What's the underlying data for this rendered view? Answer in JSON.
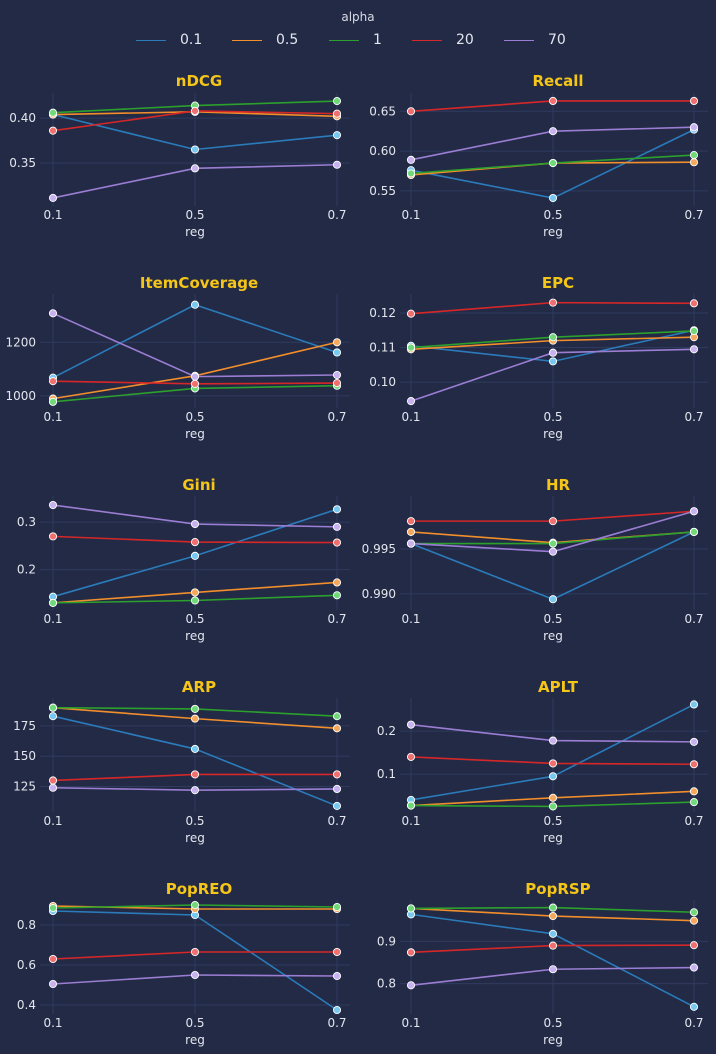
{
  "legend": {
    "title": "alpha",
    "items": [
      {
        "label": "0.1",
        "color": "#2b7bba"
      },
      {
        "label": "0.5",
        "color": "#f28e2b"
      },
      {
        "label": "1",
        "color": "#2ca02c"
      },
      {
        "label": "20",
        "color": "#d62728"
      },
      {
        "label": "70",
        "color": "#9b7ed3"
      }
    ]
  },
  "chart_data": [
    {
      "type": "line",
      "title": "nDCG",
      "xlabel": "reg",
      "categories": [
        "0.1",
        "0.5",
        "0.7"
      ],
      "ylim": [
        0.302,
        0.428
      ],
      "yticks": [
        0.35,
        0.4
      ],
      "yticklabels": [
        "0.35",
        "0.40"
      ],
      "series": [
        {
          "name": "0.1",
          "values": [
            0.404,
            0.365,
            0.381
          ]
        },
        {
          "name": "0.5",
          "values": [
            0.404,
            0.407,
            0.402
          ]
        },
        {
          "name": "1",
          "values": [
            0.406,
            0.414,
            0.419
          ]
        },
        {
          "name": "20",
          "values": [
            0.386,
            0.408,
            0.405
          ]
        },
        {
          "name": "70",
          "values": [
            0.311,
            0.344,
            0.348
          ]
        }
      ]
    },
    {
      "type": "line",
      "title": "Recall",
      "xlabel": "reg",
      "categories": [
        "0.1",
        "0.5",
        "0.7"
      ],
      "ylim": [
        0.531,
        0.673
      ],
      "yticks": [
        0.55,
        0.6,
        0.65
      ],
      "yticklabels": [
        "0.55",
        "0.60",
        "0.65"
      ],
      "series": [
        {
          "name": "0.1",
          "values": [
            0.576,
            0.541,
            0.627
          ]
        },
        {
          "name": "0.5",
          "values": [
            0.57,
            0.585,
            0.586
          ]
        },
        {
          "name": "1",
          "values": [
            0.572,
            0.585,
            0.595
          ]
        },
        {
          "name": "20",
          "values": [
            0.65,
            0.663,
            0.663
          ]
        },
        {
          "name": "70",
          "values": [
            0.589,
            0.625,
            0.63
          ]
        }
      ]
    },
    {
      "type": "line",
      "title": "ItemCoverage",
      "xlabel": "reg",
      "categories": [
        "0.1",
        "0.5",
        "0.7"
      ],
      "ylim": [
        955,
        1380
      ],
      "yticks": [
        1000,
        1200
      ],
      "yticklabels": [
        "1000",
        "1200"
      ],
      "series": [
        {
          "name": "0.1",
          "values": [
            1068,
            1340,
            1162
          ]
        },
        {
          "name": "0.5",
          "values": [
            990,
            1075,
            1200
          ]
        },
        {
          "name": "1",
          "values": [
            978,
            1028,
            1038
          ]
        },
        {
          "name": "20",
          "values": [
            1055,
            1045,
            1048
          ]
        },
        {
          "name": "70",
          "values": [
            1308,
            1072,
            1078
          ]
        }
      ]
    },
    {
      "type": "line",
      "title": "EPC",
      "xlabel": "reg",
      "categories": [
        "0.1",
        "0.5",
        "0.7"
      ],
      "ylim": [
        0.0925,
        0.1255
      ],
      "yticks": [
        0.1,
        0.11,
        0.12
      ],
      "yticklabels": [
        "0.10",
        "0.11",
        "0.12"
      ],
      "series": [
        {
          "name": "0.1",
          "values": [
            0.1105,
            0.106,
            0.115
          ]
        },
        {
          "name": "0.5",
          "values": [
            0.1095,
            0.112,
            0.113
          ]
        },
        {
          "name": "1",
          "values": [
            0.11,
            0.113,
            0.1148
          ]
        },
        {
          "name": "20",
          "values": [
            0.1198,
            0.123,
            0.1228
          ]
        },
        {
          "name": "70",
          "values": [
            0.0945,
            0.1085,
            0.1095
          ]
        }
      ]
    },
    {
      "type": "line",
      "title": "Gini",
      "xlabel": "reg",
      "categories": [
        "0.1",
        "0.5",
        "0.7"
      ],
      "ylim": [
        0.115,
        0.355
      ],
      "yticks": [
        0.2,
        0.3
      ],
      "yticklabels": [
        "0.2",
        "0.3"
      ],
      "series": [
        {
          "name": "0.1",
          "values": [
            0.143,
            0.229,
            0.327
          ]
        },
        {
          "name": "0.5",
          "values": [
            0.13,
            0.152,
            0.173
          ]
        },
        {
          "name": "1",
          "values": [
            0.13,
            0.135,
            0.146
          ]
        },
        {
          "name": "20",
          "values": [
            0.27,
            0.258,
            0.257
          ]
        },
        {
          "name": "70",
          "values": [
            0.336,
            0.296,
            0.29
          ]
        }
      ]
    },
    {
      "type": "line",
      "title": "HR",
      "xlabel": "reg",
      "categories": [
        "0.1",
        "0.5",
        "0.7"
      ],
      "ylim": [
        0.9882,
        1.0009
      ],
      "yticks": [
        0.99,
        0.995
      ],
      "yticklabels": [
        "0.990",
        "0.995"
      ],
      "series": [
        {
          "name": "0.1",
          "values": [
            0.9956,
            0.9894,
            0.9969
          ]
        },
        {
          "name": "0.5",
          "values": [
            0.9969,
            0.9957,
            0.9969
          ]
        },
        {
          "name": "1",
          "values": [
            0.9956,
            0.9956,
            0.9969
          ]
        },
        {
          "name": "20",
          "values": [
            0.9981,
            0.9981,
            0.9992
          ]
        },
        {
          "name": "70",
          "values": [
            0.9956,
            0.9947,
            0.9992
          ]
        }
      ]
    },
    {
      "type": "line",
      "title": "ARP",
      "xlabel": "reg",
      "categories": [
        "0.1",
        "0.5",
        "0.7"
      ],
      "ylim": [
        104,
        198
      ],
      "yticks": [
        125,
        150,
        175
      ],
      "yticklabels": [
        "125",
        "150",
        "175"
      ],
      "series": [
        {
          "name": "0.1",
          "values": [
            183,
            156,
            109
          ]
        },
        {
          "name": "0.5",
          "values": [
            190,
            181,
            173
          ]
        },
        {
          "name": "1",
          "values": [
            190,
            189,
            183
          ]
        },
        {
          "name": "20",
          "values": [
            130,
            135,
            135
          ]
        },
        {
          "name": "70",
          "values": [
            124,
            122,
            123
          ]
        }
      ]
    },
    {
      "type": "line",
      "title": "APLT",
      "xlabel": "reg",
      "categories": [
        "0.1",
        "0.5",
        "0.7"
      ],
      "ylim": [
        0.012,
        0.277
      ],
      "yticks": [
        0.1,
        0.2
      ],
      "yticklabels": [
        "0.1",
        "0.2"
      ],
      "series": [
        {
          "name": "0.1",
          "values": [
            0.04,
            0.095,
            0.262
          ]
        },
        {
          "name": "0.5",
          "values": [
            0.027,
            0.045,
            0.06
          ]
        },
        {
          "name": "1",
          "values": [
            0.027,
            0.025,
            0.035
          ]
        },
        {
          "name": "20",
          "values": [
            0.14,
            0.125,
            0.123
          ]
        },
        {
          "name": "70",
          "values": [
            0.215,
            0.178,
            0.175
          ]
        }
      ]
    },
    {
      "type": "line",
      "title": "PopREO",
      "xlabel": "reg",
      "categories": [
        "0.1",
        "0.5",
        "0.7"
      ],
      "ylim": [
        0.355,
        0.925
      ],
      "yticks": [
        0.4,
        0.6,
        0.8
      ],
      "yticklabels": [
        "0.4",
        "0.6",
        "0.8"
      ],
      "series": [
        {
          "name": "0.1",
          "values": [
            0.87,
            0.85,
            0.375
          ]
        },
        {
          "name": "0.5",
          "values": [
            0.895,
            0.88,
            0.88
          ]
        },
        {
          "name": "1",
          "values": [
            0.885,
            0.9,
            0.89
          ]
        },
        {
          "name": "20",
          "values": [
            0.63,
            0.665,
            0.665
          ]
        },
        {
          "name": "70",
          "values": [
            0.505,
            0.55,
            0.545
          ]
        }
      ]
    },
    {
      "type": "line",
      "title": "PopRSP",
      "xlabel": "reg",
      "categories": [
        "0.1",
        "0.5",
        "0.7"
      ],
      "ylim": [
        0.728,
        0.998
      ],
      "yticks": [
        0.8,
        0.9
      ],
      "yticklabels": [
        "0.8",
        "0.9"
      ],
      "series": [
        {
          "name": "0.1",
          "values": [
            0.964,
            0.918,
            0.745
          ]
        },
        {
          "name": "0.5",
          "values": [
            0.978,
            0.96,
            0.949
          ]
        },
        {
          "name": "1",
          "values": [
            0.978,
            0.98,
            0.969
          ]
        },
        {
          "name": "20",
          "values": [
            0.874,
            0.89,
            0.891
          ]
        },
        {
          "name": "70",
          "values": [
            0.796,
            0.834,
            0.838
          ]
        }
      ]
    }
  ]
}
